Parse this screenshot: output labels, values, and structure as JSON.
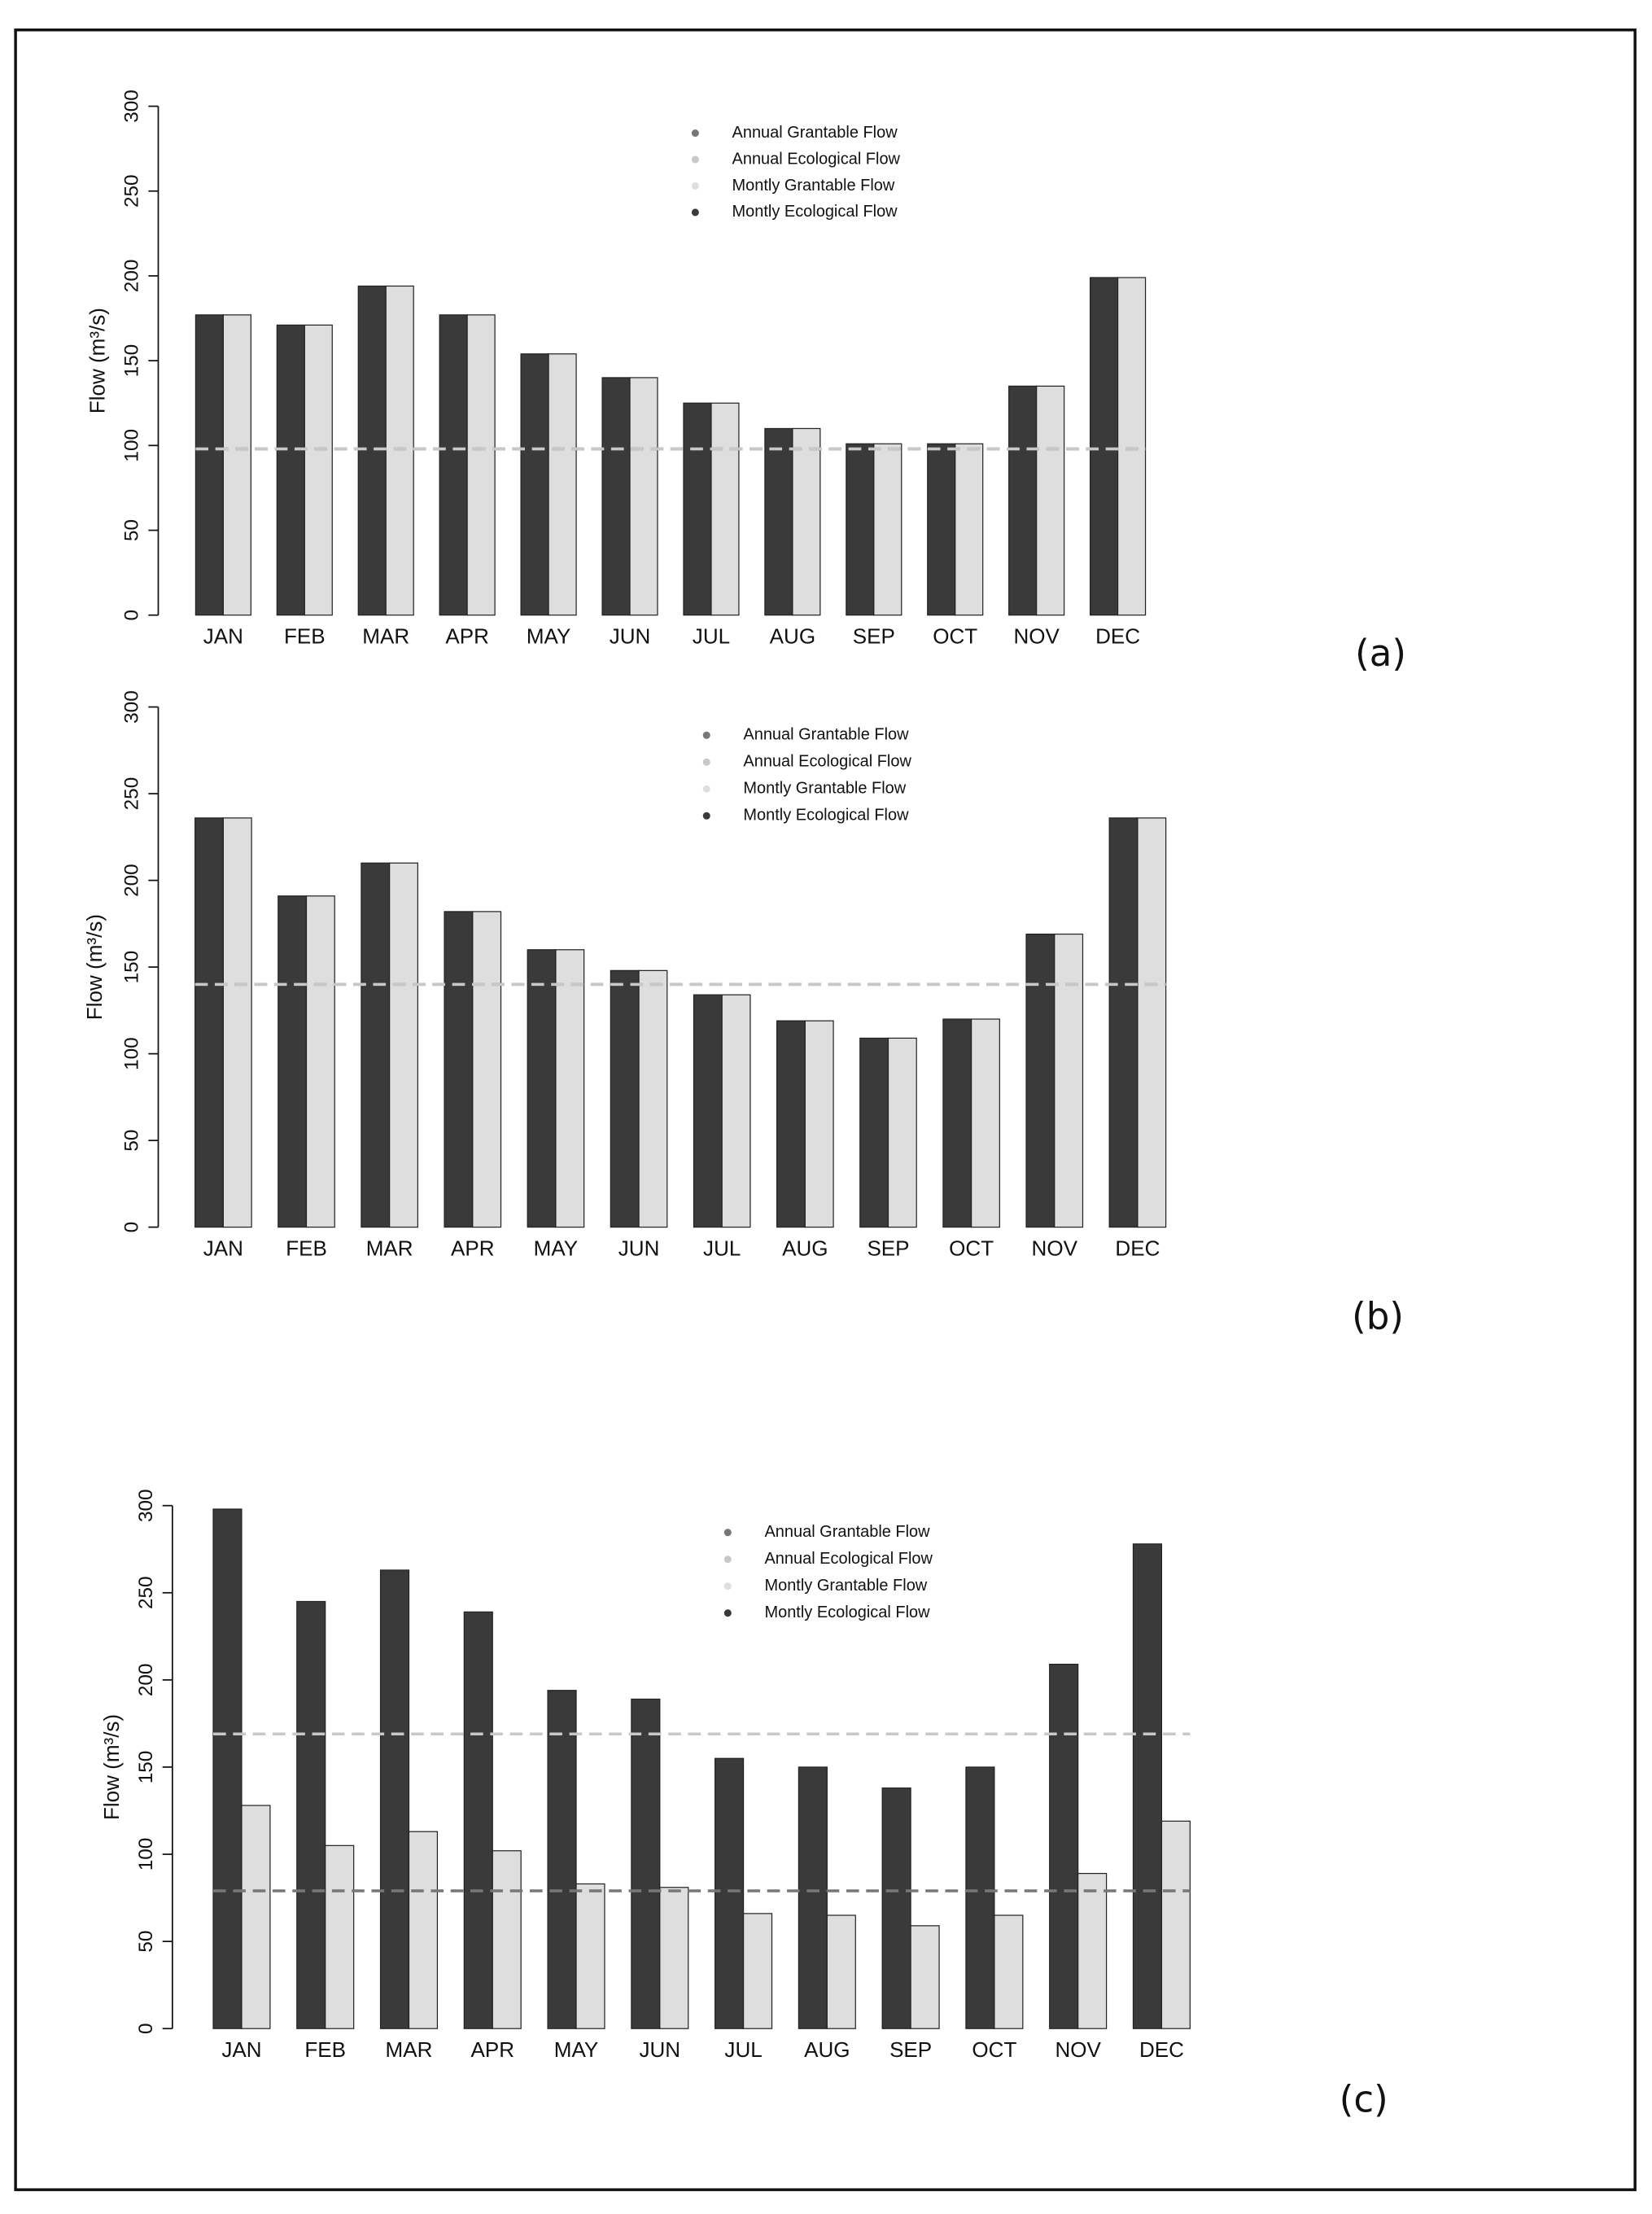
{
  "chart_data": [
    {
      "type": "bar",
      "label": "(a)",
      "y_label": "Flow (m³/s)",
      "categories": [
        "JAN",
        "FEB",
        "MAR",
        "APR",
        "MAY",
        "JUN",
        "JUL",
        "AUG",
        "SEP",
        "OCT",
        "NOV",
        "DEC"
      ],
      "ylim": [
        0,
        300
      ],
      "yticks": [
        0,
        50,
        100,
        150,
        200,
        250,
        300
      ],
      "series": [
        {
          "name": "Annual Grantable Flow",
          "type": "hline",
          "color": "#777777",
          "value": 98
        },
        {
          "name": "Annual Ecological Flow",
          "type": "hline",
          "color": "#c8c8c8",
          "value": 98
        },
        {
          "name": "Montly Grantable Flow",
          "type": "bar",
          "color": "#dedede",
          "values": [
            177,
            171,
            194,
            177,
            154,
            140,
            125,
            110,
            101,
            101,
            135,
            199
          ]
        },
        {
          "name": "Montly Ecological Flow",
          "type": "bar",
          "color": "#3a3a3a",
          "values": [
            177,
            171,
            194,
            177,
            154,
            140,
            125,
            110,
            101,
            101,
            135,
            199
          ]
        }
      ]
    },
    {
      "type": "bar",
      "label": "(b)",
      "y_label": "Flow (m³/s)",
      "categories": [
        "JAN",
        "FEB",
        "MAR",
        "APR",
        "MAY",
        "JUN",
        "JUL",
        "AUG",
        "SEP",
        "OCT",
        "NOV",
        "DEC"
      ],
      "ylim": [
        0,
        300
      ],
      "yticks": [
        0,
        50,
        100,
        150,
        200,
        250,
        300
      ],
      "series": [
        {
          "name": "Annual Grantable Flow",
          "type": "hline",
          "color": "#777777",
          "value": 140
        },
        {
          "name": "Annual Ecological Flow",
          "type": "hline",
          "color": "#c8c8c8",
          "value": 140
        },
        {
          "name": "Montly Grantable Flow",
          "type": "bar",
          "color": "#dedede",
          "values": [
            236,
            191,
            210,
            182,
            160,
            148,
            134,
            119,
            109,
            120,
            169,
            236
          ]
        },
        {
          "name": "Montly Ecological Flow",
          "type": "bar",
          "color": "#3a3a3a",
          "values": [
            236,
            191,
            210,
            182,
            160,
            148,
            134,
            119,
            109,
            120,
            169,
            236
          ]
        }
      ]
    },
    {
      "type": "bar",
      "label": "(c)",
      "y_label": "Flow (m³/s)",
      "categories": [
        "JAN",
        "FEB",
        "MAR",
        "APR",
        "MAY",
        "JUN",
        "JUL",
        "AUG",
        "SEP",
        "OCT",
        "NOV",
        "DEC"
      ],
      "ylim": [
        0,
        300
      ],
      "yticks": [
        0,
        50,
        100,
        150,
        200,
        250,
        300
      ],
      "series": [
        {
          "name": "Annual Grantable Flow",
          "type": "hline",
          "color": "#777777",
          "value": 79
        },
        {
          "name": "Annual Ecological Flow",
          "type": "hline",
          "color": "#c8c8c8",
          "value": 169
        },
        {
          "name": "Montly Grantable Flow",
          "type": "bar",
          "color": "#dedede",
          "values": [
            128,
            105,
            113,
            102,
            83,
            81,
            66,
            65,
            59,
            65,
            89,
            119
          ]
        },
        {
          "name": "Montly Ecological Flow",
          "type": "bar",
          "color": "#3a3a3a",
          "values": [
            298,
            245,
            263,
            239,
            194,
            189,
            155,
            150,
            138,
            150,
            209,
            278
          ]
        }
      ]
    }
  ]
}
